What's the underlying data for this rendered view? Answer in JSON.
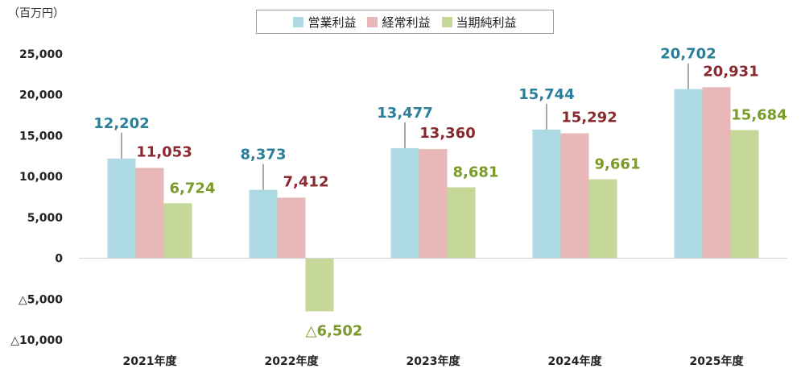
{
  "colors": {
    "operating": "#aedae4",
    "ordinary": "#e8b7b7",
    "net": "#c6d898",
    "operating_label": "#2a7f9a",
    "ordinary_label": "#8b2a2e",
    "net_label": "#7a9a2a"
  },
  "chart_data": {
    "type": "bar",
    "unit_label": "（百万円）",
    "categories": [
      "2021年度",
      "2022年度",
      "2023年度",
      "2024年度",
      "2025年度"
    ],
    "series": [
      {
        "name": "営業利益",
        "key": "operating",
        "values": [
          12202,
          8373,
          13477,
          15744,
          20702
        ]
      },
      {
        "name": "経常利益",
        "key": "ordinary",
        "values": [
          11053,
          7412,
          13360,
          15292,
          20931
        ]
      },
      {
        "name": "当期純利益",
        "key": "net",
        "values": [
          6724,
          -6502,
          8681,
          9661,
          15684
        ]
      }
    ],
    "data_labels": {
      "operating": [
        "12,202",
        "8,373",
        "13,477",
        "15,744",
        "20,702"
      ],
      "ordinary": [
        "11,053",
        "7,412",
        "13,360",
        "15,292",
        "20,931"
      ],
      "net": [
        "6,724",
        "△6,502",
        "8,681",
        "9,661",
        "15,684"
      ]
    },
    "ylim": [
      -10000,
      25000
    ],
    "yticks": [
      25000,
      20000,
      15000,
      10000,
      5000,
      0,
      -5000,
      -10000
    ],
    "ytick_labels": [
      "25,000",
      "20,000",
      "15,000",
      "10,000",
      "5,000",
      "0",
      "△5,000",
      "△10,000"
    ],
    "legend": "top-center",
    "grid": false
  }
}
